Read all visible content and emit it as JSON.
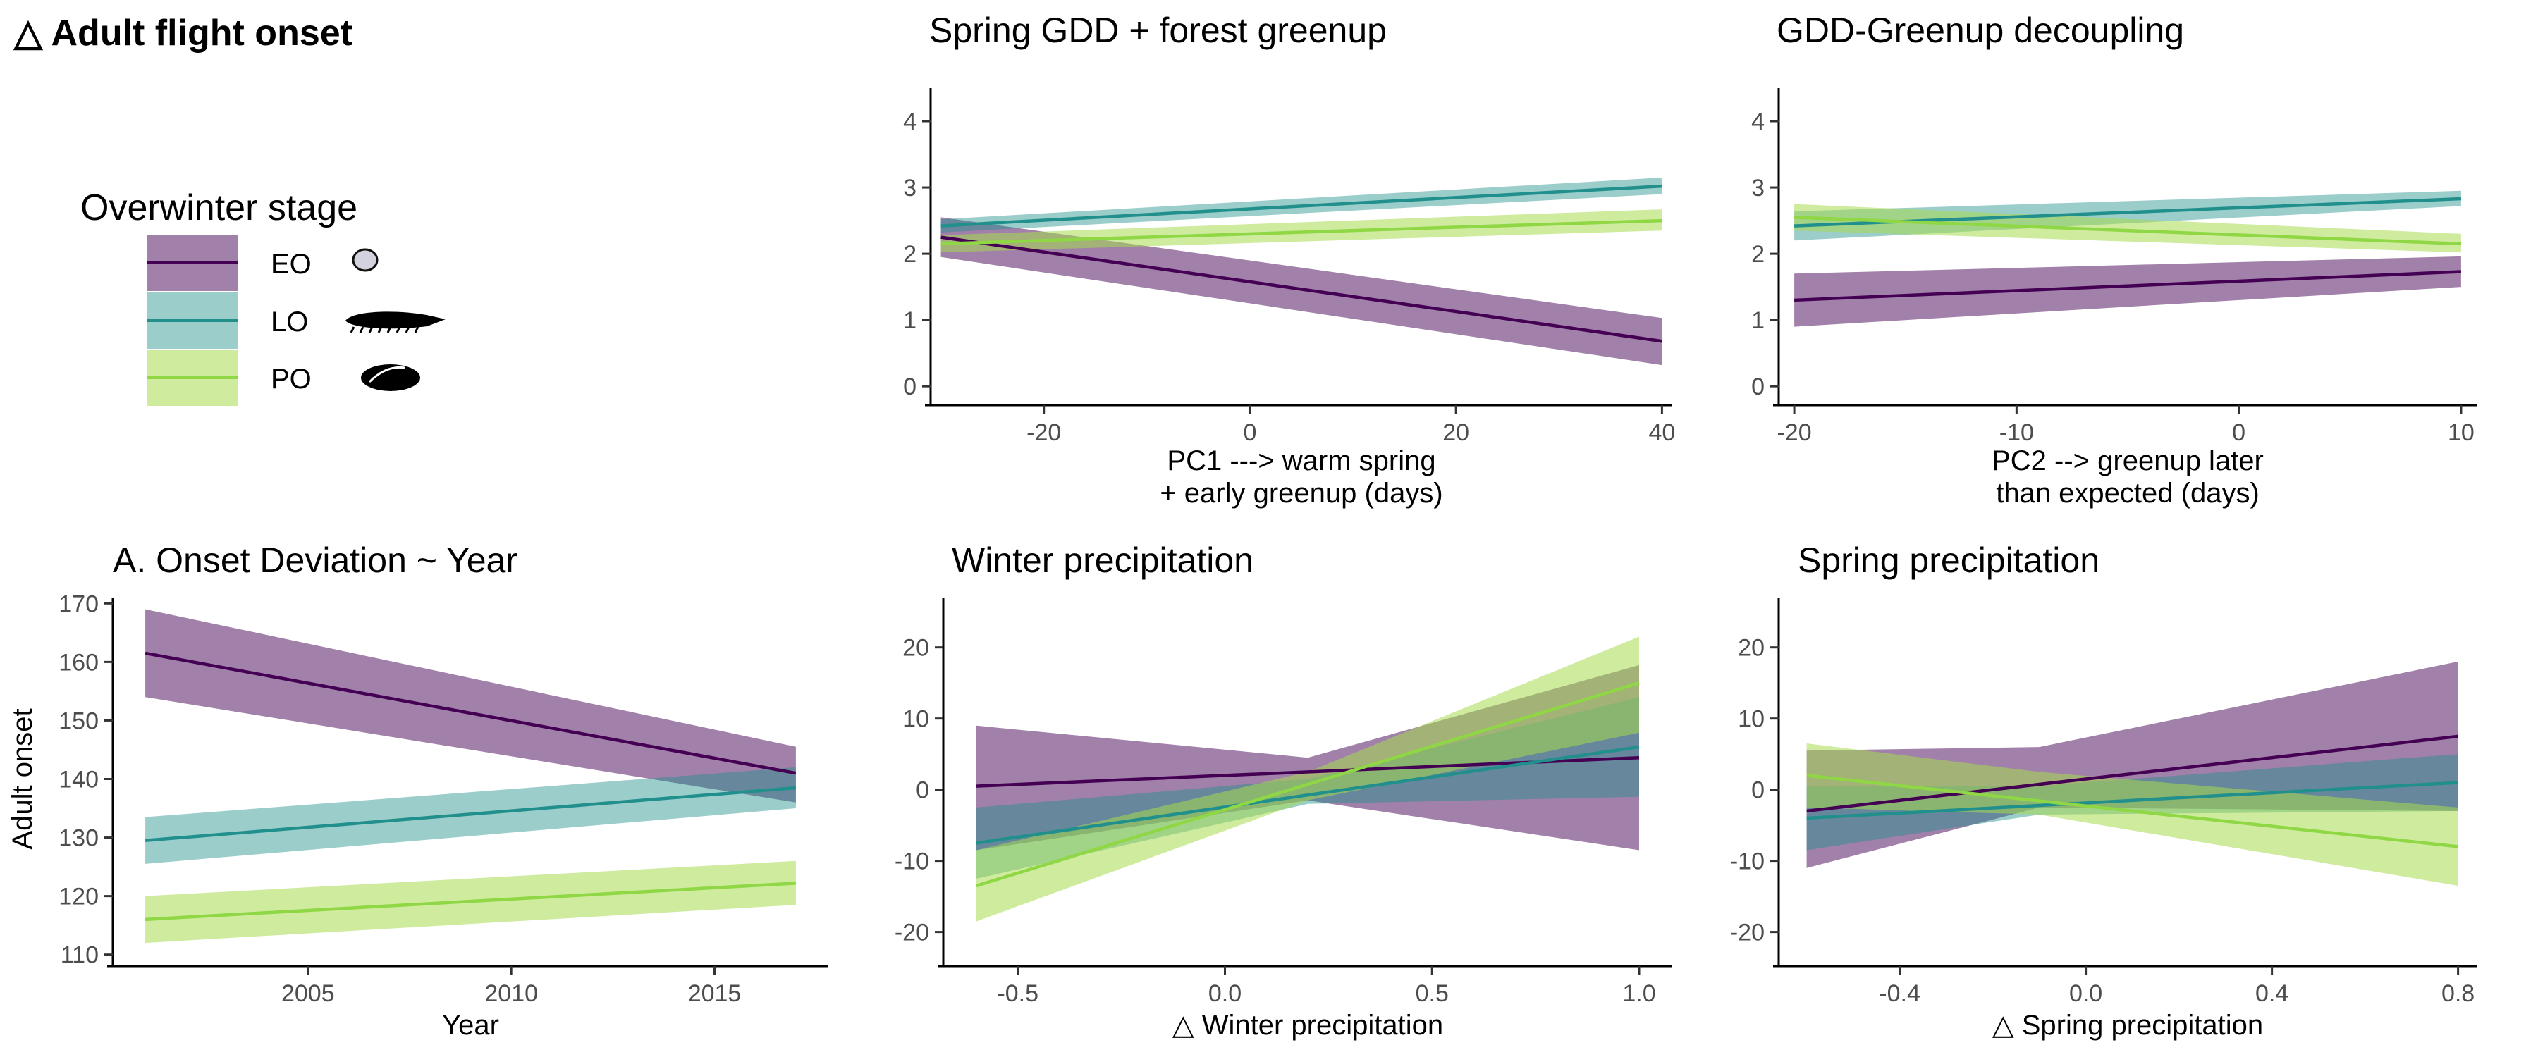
{
  "figure": {
    "main_title": "△ Adult flight onset",
    "legend": {
      "title": "Overwinter stage",
      "entries": [
        {
          "key": "EO",
          "label": "EO",
          "icon": "egg-icon"
        },
        {
          "key": "LO",
          "label": "LO",
          "icon": "larva-icon"
        },
        {
          "key": "PO",
          "label": "PO",
          "icon": "pupa-icon"
        }
      ]
    }
  },
  "colors": {
    "EO": {
      "line": "#440154",
      "band": "#440154",
      "band_opacity": 0.5
    },
    "LO": {
      "line": "#21908C",
      "band": "#21908C",
      "band_opacity": 0.45
    },
    "PO": {
      "line": "#8FD744",
      "band": "#A6DB4F",
      "band_opacity": 0.55
    }
  },
  "chart_data": [
    {
      "id": "pc1",
      "type": "line",
      "title": "Spring GDD + forest greenup",
      "xlabel": "PC1  ---> warm spring\n+ early greenup (days)",
      "ylabel": "",
      "xlim": [
        -31,
        41
      ],
      "ylim": [
        -0.2,
        4.5
      ],
      "xticks": [
        -20,
        0,
        20,
        40
      ],
      "yticks": [
        0,
        1,
        2,
        3,
        4
      ],
      "series": [
        {
          "key": "EO",
          "x": [
            -30,
            40
          ],
          "y": [
            2.25,
            0.68
          ],
          "lower": [
            1.95,
            0.32
          ],
          "upper": [
            2.55,
            1.03
          ]
        },
        {
          "key": "LO",
          "x": [
            -30,
            40
          ],
          "y": [
            2.42,
            3.02
          ],
          "lower": [
            2.32,
            2.9
          ],
          "upper": [
            2.52,
            3.15
          ]
        },
        {
          "key": "PO",
          "x": [
            -30,
            40
          ],
          "y": [
            2.15,
            2.5
          ],
          "lower": [
            2.02,
            2.35
          ],
          "upper": [
            2.28,
            2.67
          ]
        }
      ]
    },
    {
      "id": "pc2",
      "type": "line",
      "title": "GDD-Greenup decoupling",
      "xlabel": "PC2 --> greenup later\nthan expected (days)",
      "ylabel": "",
      "xlim": [
        -20.7,
        10.7
      ],
      "ylim": [
        -0.2,
        4.5
      ],
      "xticks": [
        -20,
        -10,
        0,
        10
      ],
      "yticks": [
        0,
        1,
        2,
        3,
        4
      ],
      "series": [
        {
          "key": "EO",
          "x": [
            -20,
            10
          ],
          "y": [
            1.3,
            1.73
          ],
          "lower": [
            0.9,
            1.5
          ],
          "upper": [
            1.7,
            1.96
          ]
        },
        {
          "key": "LO",
          "x": [
            -20,
            10
          ],
          "y": [
            2.42,
            2.83
          ],
          "lower": [
            2.2,
            2.72
          ],
          "upper": [
            2.64,
            2.95
          ]
        },
        {
          "key": "PO",
          "x": [
            -20,
            10
          ],
          "y": [
            2.55,
            2.15
          ],
          "lower": [
            2.35,
            2.02
          ],
          "upper": [
            2.75,
            2.3
          ]
        }
      ]
    },
    {
      "id": "year",
      "type": "line",
      "title": "A. Onset Deviation ~ Year",
      "xlabel": "Year",
      "ylabel": "Adult onset",
      "xlim": [
        2000.2,
        2017.8
      ],
      "ylim": [
        109,
        171
      ],
      "xticks": [
        2005,
        2010,
        2015
      ],
      "yticks": [
        110,
        120,
        130,
        140,
        150,
        160,
        170
      ],
      "series": [
        {
          "key": "EO",
          "x": [
            2001,
            2017
          ],
          "y": [
            161.5,
            141
          ],
          "lower": [
            154,
            136
          ],
          "upper": [
            169,
            145.5
          ]
        },
        {
          "key": "LO",
          "x": [
            2001,
            2017
          ],
          "y": [
            129.5,
            138.5
          ],
          "lower": [
            125.5,
            135
          ],
          "upper": [
            133.5,
            142
          ]
        },
        {
          "key": "PO",
          "x": [
            2001,
            2017
          ],
          "y": [
            116,
            122.2
          ],
          "lower": [
            112,
            118.5
          ],
          "upper": [
            120,
            126
          ]
        }
      ]
    },
    {
      "id": "winter",
      "type": "line",
      "title": "Winter precipitation",
      "xlabel": "△ Winter precipitation",
      "ylabel": "",
      "xlim": [
        -0.68,
        1.08
      ],
      "ylim": [
        -24,
        27
      ],
      "xticks": [
        -0.5,
        0.0,
        0.5,
        1.0
      ],
      "yticks": [
        -20,
        -10,
        0,
        10,
        20
      ],
      "series": [
        {
          "key": "EO",
          "x": [
            -0.6,
            1.0
          ],
          "y": [
            0.5,
            4.5
          ],
          "lower": [
            -8.5,
            -8.5
          ],
          "upper": [
            9.0,
            17.5
          ],
          "mid_x": 0.2,
          "mid_lower": [
            -1.5
          ],
          "mid_upper": [
            4.5
          ]
        },
        {
          "key": "LO",
          "x": [
            -0.6,
            1.0
          ],
          "y": [
            -7.5,
            6.0
          ],
          "lower": [
            -12.5,
            -1.0
          ],
          "upper": [
            -2.5,
            13.0
          ],
          "mid_x": 0.2,
          "mid_lower": [
            -2.0
          ],
          "mid_upper": [
            1.5
          ]
        },
        {
          "key": "PO",
          "x": [
            -0.6,
            1.0
          ],
          "y": [
            -13.5,
            15.0
          ],
          "lower": [
            -18.5,
            8.0
          ],
          "upper": [
            -8.5,
            21.5
          ],
          "mid_x": 0.2,
          "mid_lower": [
            -1.5
          ],
          "mid_upper": [
            2.5
          ]
        }
      ]
    },
    {
      "id": "spring",
      "type": "line",
      "title": "Spring precipitation",
      "xlabel": "△ Spring precipitation",
      "ylabel": "",
      "xlim": [
        -0.66,
        0.84
      ],
      "ylim": [
        -24,
        27
      ],
      "xticks": [
        -0.4,
        0.0,
        0.4,
        0.8
      ],
      "yticks": [
        -20,
        -10,
        0,
        10,
        20
      ],
      "series": [
        {
          "key": "EO",
          "x": [
            -0.6,
            0.8
          ],
          "y": [
            -3.0,
            7.5
          ],
          "lower": [
            -11.0,
            -3.0
          ],
          "upper": [
            5.5,
            18.0
          ],
          "mid_x": -0.1,
          "mid_lower": [
            -2.5
          ],
          "mid_upper": [
            6.0
          ]
        },
        {
          "key": "LO",
          "x": [
            -0.6,
            0.8
          ],
          "y": [
            -4.0,
            1.0
          ],
          "lower": [
            -8.5,
            -3.0
          ],
          "upper": [
            0.5,
            5.0
          ],
          "mid_x": -0.1,
          "mid_lower": [
            -3.5
          ],
          "mid_upper": [
            0.5
          ]
        },
        {
          "key": "PO",
          "x": [
            -0.6,
            0.8
          ],
          "y": [
            2.0,
            -8.0
          ],
          "lower": [
            -2.5,
            -13.5
          ],
          "upper": [
            6.5,
            -2.5
          ],
          "mid_x": -0.1,
          "mid_lower": [
            -3.5
          ],
          "mid_upper": [
            2.5
          ]
        }
      ]
    }
  ]
}
